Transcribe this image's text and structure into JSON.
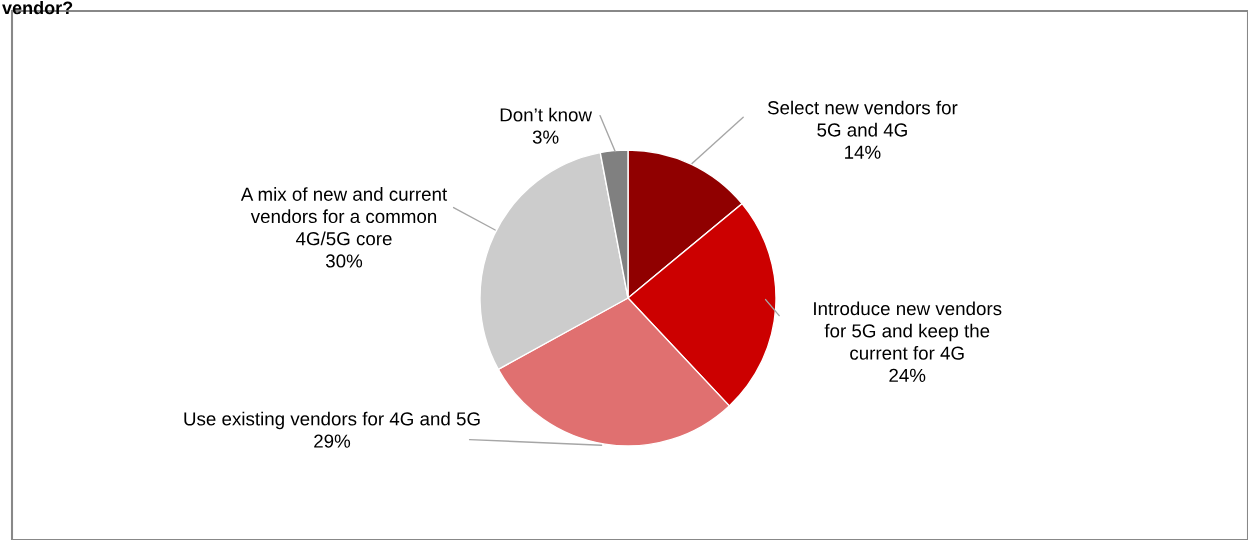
{
  "chart_data": {
    "type": "pie",
    "title": "vendor?",
    "categories": [
      "Select new vendors for\n5G and 4G",
      "Introduce new vendors\nfor 5G and keep the\ncurrent for 4G",
      "Use existing vendors for 4G and 5G",
      "A mix of new and current\nvendors for a common\n4G/5G core",
      "Don’t know"
    ],
    "values": [
      14,
      24,
      29,
      30,
      3
    ],
    "value_labels": [
      "14%",
      "24%",
      "29%",
      "30%",
      "3%"
    ],
    "colors": [
      "#900000",
      "#cc0000",
      "#e07070",
      "#cccccc",
      "#808080"
    ],
    "legend": false
  }
}
